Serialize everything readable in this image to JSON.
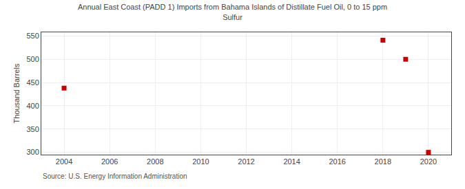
{
  "chart_data": {
    "type": "scatter",
    "title": "Annual East Coast (PADD 1) Imports from Bahama Islands of Distillate Fuel Oil, 0 to 15 ppm\nSulfur",
    "y_label": "Thousand Barrels",
    "annotations": [
      "Source: U.S. Energy Information Administration"
    ],
    "x": [
      2004,
      2018,
      2019,
      2020
    ],
    "values": [
      438,
      541,
      500,
      300
    ],
    "xlim": [
      2003.0,
      2021.0
    ],
    "xticks": [
      2004,
      2006,
      2008,
      2010,
      2012,
      2014,
      2016,
      2018,
      2020
    ],
    "ylim": [
      295,
      558
    ],
    "yticks": [
      300,
      350,
      400,
      450,
      500,
      550
    ],
    "color": "#cc0000",
    "marker": "square",
    "grid": true
  }
}
